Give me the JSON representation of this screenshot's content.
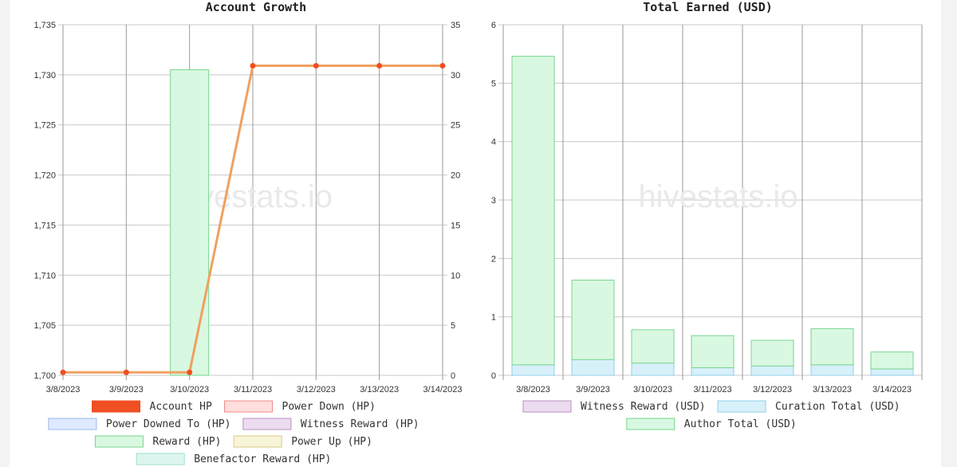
{
  "watermark": "hivestats.io",
  "chart_data": [
    {
      "type": "bar+line",
      "title": "Account Growth",
      "categories": [
        "3/8/2023",
        "3/9/2023",
        "3/10/2023",
        "3/11/2023",
        "3/12/2023",
        "3/13/2023",
        "3/14/2023"
      ],
      "y_left": {
        "range": [
          1700,
          1735
        ],
        "ticks": [
          "1,700",
          "1,705",
          "1,710",
          "1,715",
          "1,720",
          "1,725",
          "1,730",
          "1,735"
        ],
        "tick_values": [
          1700,
          1705,
          1710,
          1715,
          1720,
          1725,
          1730,
          1735
        ]
      },
      "y_right": {
        "range": [
          0,
          35
        ],
        "ticks": [
          "0",
          "5",
          "10",
          "15",
          "20",
          "25",
          "30",
          "35"
        ],
        "tick_values": [
          0,
          5,
          10,
          15,
          20,
          25,
          30,
          35
        ]
      },
      "grid": true,
      "series": [
        {
          "name": "Account HP",
          "kind": "line",
          "axis": "left",
          "color": "#f04e23",
          "values": [
            1700.3,
            1700.3,
            1700.3,
            1730.9,
            1730.9,
            1730.9,
            1730.9
          ]
        },
        {
          "name": "Power Down (HP)",
          "kind": "bar",
          "axis": "right",
          "color": "#ffdede",
          "border": "#f08a8a",
          "values": [
            0,
            0,
            0,
            0,
            0,
            0,
            0
          ]
        },
        {
          "name": "Power Downed To (HP)",
          "kind": "bar",
          "axis": "right",
          "color": "#deeaff",
          "border": "#9ab8ea",
          "values": [
            0,
            0,
            0,
            0,
            0,
            0,
            0
          ]
        },
        {
          "name": "Witness Reward (HP)",
          "kind": "bar",
          "axis": "right",
          "color": "#ecdcef",
          "border": "#b88fc2",
          "values": [
            0,
            0,
            0,
            0,
            0,
            0,
            0
          ]
        },
        {
          "name": "Reward (HP)",
          "kind": "bar",
          "axis": "right",
          "color": "#d9f8e1",
          "border": "#78d58e",
          "values": [
            0,
            0,
            30.5,
            0,
            0,
            0,
            0
          ]
        },
        {
          "name": "Power Up (HP)",
          "kind": "bar",
          "axis": "right",
          "color": "#f8f4d8",
          "border": "#d8cd86",
          "values": [
            0,
            0,
            0,
            0,
            0,
            0,
            0
          ]
        },
        {
          "name": "Benefactor Reward (HP)",
          "kind": "bar",
          "axis": "right",
          "color": "#dcf6ef",
          "border": "#9fded0",
          "values": [
            0,
            0,
            0,
            0,
            0,
            0,
            0
          ]
        }
      ],
      "legend": "bottom"
    },
    {
      "type": "bar",
      "stacked": true,
      "title": "Total Earned (USD)",
      "categories": [
        "3/8/2023",
        "3/9/2023",
        "3/10/2023",
        "3/11/2023",
        "3/12/2023",
        "3/13/2023",
        "3/14/2023"
      ],
      "y": {
        "range": [
          0,
          6
        ],
        "ticks": [
          "0",
          "1",
          "2",
          "3",
          "4",
          "5",
          "6"
        ],
        "tick_values": [
          0,
          1,
          2,
          3,
          4,
          5,
          6
        ]
      },
      "grid": true,
      "series": [
        {
          "name": "Witness Reward (USD)",
          "color": "#ecdcef",
          "border": "#b88fc2",
          "values": [
            0,
            0,
            0,
            0,
            0,
            0,
            0
          ]
        },
        {
          "name": "Curation Total (USD)",
          "color": "#d8f0fa",
          "border": "#8ecfe8",
          "values": [
            0.18,
            0.27,
            0.21,
            0.13,
            0.16,
            0.18,
            0.11
          ]
        },
        {
          "name": "Author Total (USD)",
          "color": "#d9f8e1",
          "border": "#78d58e",
          "values": [
            5.28,
            1.36,
            0.57,
            0.55,
            0.44,
            0.62,
            0.29
          ]
        }
      ],
      "legend": "bottom"
    }
  ]
}
